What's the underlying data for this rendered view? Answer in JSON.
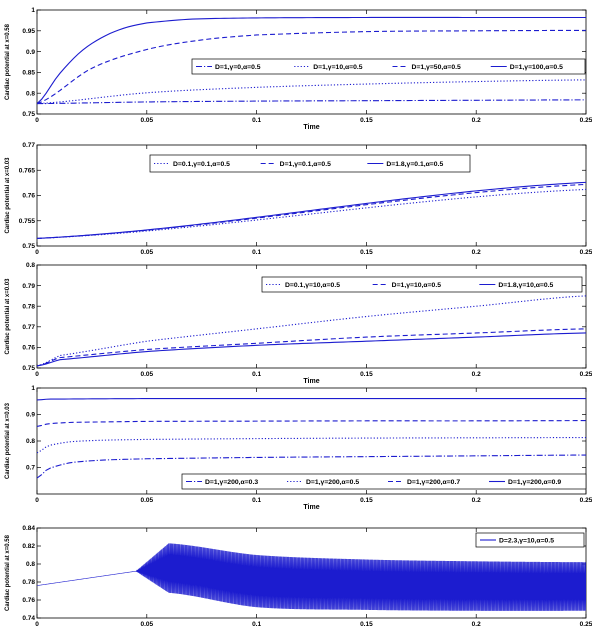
{
  "chart_data": [
    {
      "type": "line",
      "ylabel": "Cardiac potential at x=0.58",
      "xlabel": "Time",
      "xlim": [
        0,
        0.25
      ],
      "ylim": [
        0.75,
        1
      ],
      "xticks": [
        "0",
        "0.05",
        "0.1",
        "0.15",
        "0.2",
        "0.25"
      ],
      "yticks": [
        "0.75",
        "0.8",
        "0.85",
        "0.9",
        "0.95",
        "1"
      ],
      "legend": "inside-right",
      "series": [
        {
          "name": "D=1,γ=0,α=0.5",
          "style": "dashdot",
          "color": "#1c1ccf",
          "x": [
            0,
            0.05,
            0.1,
            0.15,
            0.2,
            0.25
          ],
          "y": [
            0.775,
            0.779,
            0.781,
            0.782,
            0.783,
            0.784
          ]
        },
        {
          "name": "D=1,γ=10,α=0.5",
          "style": "dotted",
          "color": "#1c1ccf",
          "x": [
            0,
            0.05,
            0.1,
            0.15,
            0.2,
            0.25
          ],
          "y": [
            0.775,
            0.801,
            0.814,
            0.822,
            0.828,
            0.832
          ]
        },
        {
          "name": "D=1,γ=50,α=0.5",
          "style": "dashed",
          "color": "#1c1ccf",
          "x": [
            0,
            0.025,
            0.05,
            0.075,
            0.1,
            0.15,
            0.2,
            0.25
          ],
          "y": [
            0.775,
            0.86,
            0.905,
            0.928,
            0.94,
            0.948,
            0.95,
            0.951
          ]
        },
        {
          "name": "D=1,γ=100,α=0.5",
          "style": "solid",
          "color": "#1c1ccf",
          "x": [
            0,
            0.01,
            0.02,
            0.03,
            0.04,
            0.05,
            0.07,
            0.1,
            0.15,
            0.2,
            0.25
          ],
          "y": [
            0.775,
            0.845,
            0.9,
            0.935,
            0.957,
            0.969,
            0.978,
            0.981,
            0.982,
            0.982,
            0.982
          ]
        }
      ]
    },
    {
      "type": "line",
      "ylabel": "Cardiac potential at x=0.03",
      "xlabel": "",
      "xlim": [
        0,
        0.25
      ],
      "ylim": [
        0.75,
        0.77
      ],
      "xticks": [
        "0",
        "0.05",
        "0.1",
        "0.15",
        "0.2",
        "0.25"
      ],
      "yticks": [
        "0.75",
        "0.755",
        "0.76",
        "0.765",
        "0.77"
      ],
      "legend": "top",
      "series": [
        {
          "name": "D=0.1,γ=0.1,α=0.5",
          "style": "dotted",
          "color": "#1c1ccf",
          "x": [
            0,
            0.25
          ],
          "y": [
            0.7515,
            0.7612
          ]
        },
        {
          "name": "D=1,γ=0.1,α=0.5",
          "style": "dashed",
          "color": "#1c1ccf",
          "x": [
            0,
            0.25
          ],
          "y": [
            0.7515,
            0.7622
          ]
        },
        {
          "name": "D=1.8,γ=0.1,α=0.5",
          "style": "solid",
          "color": "#1c1ccf",
          "x": [
            0,
            0.25
          ],
          "y": [
            0.7515,
            0.7626
          ]
        }
      ]
    },
    {
      "type": "line",
      "ylabel": "Cardiac potential at x=0.03",
      "xlabel": "Time",
      "xlim": [
        0,
        0.25
      ],
      "ylim": [
        0.75,
        0.8
      ],
      "xticks": [
        "0",
        "0.05",
        "0.1",
        "0.15",
        "0.2",
        "0.25"
      ],
      "yticks": [
        "0.75",
        "0.76",
        "0.77",
        "0.78",
        "0.79",
        "0.8"
      ],
      "legend": "top-right",
      "series": [
        {
          "name": "D=0.1,γ=10,α=0.5",
          "style": "dotted",
          "color": "#1c1ccf",
          "x": [
            0,
            0.01,
            0.05,
            0.1,
            0.15,
            0.2,
            0.25
          ],
          "y": [
            0.751,
            0.756,
            0.763,
            0.769,
            0.775,
            0.78,
            0.785
          ]
        },
        {
          "name": "D=1,γ=10,α=0.5",
          "style": "dashed",
          "color": "#1c1ccf",
          "x": [
            0,
            0.01,
            0.05,
            0.1,
            0.15,
            0.2,
            0.25
          ],
          "y": [
            0.751,
            0.755,
            0.759,
            0.762,
            0.765,
            0.767,
            0.769
          ]
        },
        {
          "name": "D=1.8,γ=10,α=0.5",
          "style": "solid",
          "color": "#1c1ccf",
          "x": [
            0,
            0.01,
            0.05,
            0.1,
            0.15,
            0.2,
            0.25
          ],
          "y": [
            0.751,
            0.754,
            0.758,
            0.761,
            0.763,
            0.765,
            0.767
          ]
        }
      ]
    },
    {
      "type": "line",
      "ylabel": "Cardiac potential at x=0.03",
      "xlabel": "Time",
      "xlim": [
        0,
        0.25
      ],
      "ylim": [
        0.6,
        1
      ],
      "xticks": [
        "0",
        "0.05",
        "0.1",
        "0.15",
        "0.2",
        "0.25"
      ],
      "yticks": [
        "0.7",
        "0.8",
        "0.9",
        "1"
      ],
      "legend": "bottom",
      "series": [
        {
          "name": "D=1,γ=200,α=0.3",
          "style": "dashdot",
          "color": "#1c1ccf",
          "x": [
            0,
            0.005,
            0.015,
            0.03,
            0.05,
            0.1,
            0.15,
            0.2,
            0.25
          ],
          "y": [
            0.66,
            0.695,
            0.718,
            0.728,
            0.733,
            0.738,
            0.741,
            0.744,
            0.747
          ]
        },
        {
          "name": "D=1,γ=200,α=0.5",
          "style": "dotted",
          "color": "#1c1ccf",
          "x": [
            0,
            0.005,
            0.015,
            0.03,
            0.05,
            0.1,
            0.15,
            0.2,
            0.25
          ],
          "y": [
            0.755,
            0.782,
            0.797,
            0.803,
            0.806,
            0.809,
            0.811,
            0.812,
            0.813
          ]
        },
        {
          "name": "D=1,γ=200,α=0.7",
          "style": "dashed",
          "color": "#1c1ccf",
          "x": [
            0,
            0.005,
            0.015,
            0.03,
            0.05,
            0.1,
            0.15,
            0.2,
            0.25
          ],
          "y": [
            0.855,
            0.865,
            0.87,
            0.872,
            0.874,
            0.875,
            0.876,
            0.876,
            0.877
          ]
        },
        {
          "name": "D=1,γ=200,α=0.9",
          "style": "solid",
          "color": "#1c1ccf",
          "x": [
            0,
            0.005,
            0.05,
            0.1,
            0.15,
            0.2,
            0.25
          ],
          "y": [
            0.955,
            0.958,
            0.96,
            0.96,
            0.96,
            0.96,
            0.96
          ]
        }
      ]
    },
    {
      "type": "line",
      "ylabel": "Cardiac potential at x=0.58",
      "xlabel": "Time",
      "xlim": [
        0,
        0.25
      ],
      "ylim": [
        0.74,
        0.84
      ],
      "xticks": [
        "0",
        "0.05",
        "0.1",
        "0.15",
        "0.2",
        "0.25"
      ],
      "yticks": [
        "0.74",
        "0.76",
        "0.78",
        "0.8",
        "0.82",
        "0.84"
      ],
      "legend": "top-right",
      "series": [
        {
          "name": "D=2.3,γ=10,α=0.5",
          "style": "solid",
          "color": "#1c1ccf",
          "oscillation": {
            "onset": 0.045,
            "peak_time": 0.06,
            "upper": [
              0.823,
              0.81,
              0.805,
              0.803,
              0.802
            ],
            "lower": [
              0.768,
              0.752,
              0.749,
              0.748,
              0.748
            ],
            "base_start": 0.776,
            "base_onset": 0.792
          }
        }
      ]
    }
  ]
}
